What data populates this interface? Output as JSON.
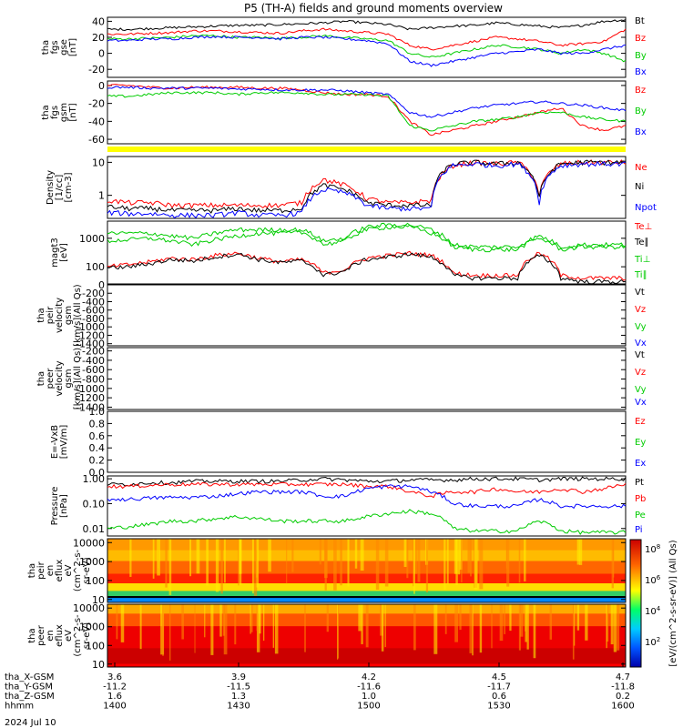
{
  "title": "P5 (TH-A) fields and ground moments overview",
  "panels": [
    {
      "id": "fgs-gse",
      "ylabel": [
        "tha",
        "fgs",
        "gse",
        "[nT]"
      ],
      "ticks": [
        "40",
        "20",
        "0",
        "-20"
      ],
      "legend": [
        {
          "t": "Bt",
          "c": "#000000"
        },
        {
          "t": "Bz",
          "c": "#ff0000"
        },
        {
          "t": "By",
          "c": "#00cc00"
        },
        {
          "t": "Bx",
          "c": "#0000ff"
        }
      ]
    },
    {
      "id": "fgs-gsm",
      "ylabel": [
        "tha",
        "fgs",
        "gsm",
        "[nT]"
      ],
      "ticks": [
        "0",
        "-20",
        "-40",
        "-60"
      ],
      "legend": [
        {
          "t": "Bz",
          "c": "#ff0000"
        },
        {
          "t": "By",
          "c": "#00cc00"
        },
        {
          "t": "Bx",
          "c": "#0000ff"
        }
      ]
    },
    {
      "id": "density",
      "ylabel": [
        "Density",
        "[1/cc]",
        "[cm-3]"
      ],
      "ticks": [
        "10",
        "1"
      ],
      "legend": [
        {
          "t": "Ne",
          "c": "#ff0000"
        },
        {
          "t": "Ni",
          "c": "#000000"
        },
        {
          "t": "Npot",
          "c": "#0000ff"
        }
      ]
    },
    {
      "id": "temperature",
      "ylabel": [
        "magt3",
        "[eV]"
      ],
      "ticks": [
        "1000",
        "100"
      ],
      "legend": [
        {
          "t": "Te⊥",
          "c": "#ff0000"
        },
        {
          "t": "Te∥",
          "c": "#000000"
        },
        {
          "t": "Ti⊥",
          "c": "#00cc00"
        },
        {
          "t": "Ti∥",
          "c": "#00cc00"
        }
      ]
    },
    {
      "id": "peir-vel",
      "ylabel": [
        "tha",
        "peir",
        "velocity",
        "gsm",
        "[km/s](All Qs)"
      ],
      "ticks": [
        "0",
        "-200",
        "-400",
        "-600",
        "-800",
        "-1000",
        "-1200",
        "-1400"
      ],
      "legend": [
        {
          "t": "Vt",
          "c": "#000000"
        },
        {
          "t": "Vz",
          "c": "#ff0000"
        },
        {
          "t": "Vy",
          "c": "#00cc00"
        },
        {
          "t": "Vx",
          "c": "#0000ff"
        }
      ]
    },
    {
      "id": "peer-vel",
      "ylabel": [
        "tha",
        "peer",
        "velocity",
        "gsm",
        "[km/s](All Qs)"
      ],
      "ticks": [
        "-200",
        "-400",
        "-600",
        "-800",
        "-1000",
        "-1200",
        "-1400"
      ],
      "legend": [
        {
          "t": "Vt",
          "c": "#000000"
        },
        {
          "t": "Vz",
          "c": "#ff0000"
        },
        {
          "t": "Vy",
          "c": "#00cc00"
        },
        {
          "t": "Vx",
          "c": "#0000ff"
        }
      ]
    },
    {
      "id": "efield",
      "ylabel": [
        "E=-VxB",
        "[mV/m]"
      ],
      "ticks": [
        "1.0",
        "0.8",
        "0.6",
        "0.4",
        "0.2",
        "0.0"
      ],
      "legend": [
        {
          "t": "Ez",
          "c": "#ff0000"
        },
        {
          "t": "Ey",
          "c": "#00cc00"
        },
        {
          "t": "Ex",
          "c": "#0000ff"
        }
      ]
    },
    {
      "id": "pressure",
      "ylabel": [
        "Pressure",
        "[nPa]"
      ],
      "ticks": [
        "1.00",
        "0.10",
        "0.01"
      ],
      "legend": [
        {
          "t": "Pt",
          "c": "#000000"
        },
        {
          "t": "Pb",
          "c": "#ff0000"
        },
        {
          "t": "Pe",
          "c": "#00cc00"
        },
        {
          "t": "Pi",
          "c": "#0000ff"
        }
      ]
    },
    {
      "id": "peir-en",
      "ylabel": [
        "tha",
        "peir",
        "en",
        "eflux",
        "eV",
        "(cm^2-s-",
        "sr-eV)"
      ],
      "ticks": [
        "10000",
        "1000",
        "100",
        "10"
      ],
      "legend": []
    },
    {
      "id": "peer-en",
      "ylabel": [
        "tha",
        "peer",
        "en",
        "eflux",
        "eV",
        "(cm^2-s-",
        "sr-eV)"
      ],
      "ticks": [
        "10000",
        "1000",
        "100",
        "10"
      ],
      "legend": []
    }
  ],
  "colorbar": {
    "ticks": [
      "10^8",
      "10^6",
      "10^4",
      "10^2"
    ],
    "label": "[eV/(cm^2-s-sr-eV)] (All Qs)"
  },
  "axis_rows": [
    {
      "label": "tha_X-GSM",
      "values": [
        "3.6",
        "3.9",
        "4.2",
        "4.5",
        "4.7"
      ]
    },
    {
      "label": "tha_Y-GSM",
      "values": [
        "-11.2",
        "-11.5",
        "-11.6",
        "-11.7",
        "-11.8"
      ]
    },
    {
      "label": "tha_Z-GSM",
      "values": [
        "1.6",
        "1.3",
        "1.0",
        "0.6",
        "0.2"
      ]
    },
    {
      "label": "hhmm",
      "values": [
        "1400",
        "1430",
        "1500",
        "1530",
        "1600"
      ]
    }
  ],
  "date_label": "2024 Jul 10",
  "colors": {
    "black": "#000000",
    "red": "#ff0000",
    "green": "#00cc00",
    "blue": "#0000ff",
    "yellow": "#ffff00"
  },
  "chart_data": {
    "type": "line",
    "title": "P5 (TH-A) fields and ground moments overview",
    "x": {
      "label": "hhmm",
      "range": [
        "1400",
        "1600"
      ],
      "ticks": [
        "1400",
        "1430",
        "1500",
        "1530",
        "1600"
      ]
    },
    "series": [
      {
        "panel": "fgs-gse",
        "name": "Bt",
        "values": [
          30,
          30,
          31,
          32,
          33,
          34,
          35,
          35,
          36,
          37,
          38,
          40,
          38,
          36,
          30,
          32,
          34,
          35,
          38,
          36,
          34,
          32,
          35,
          40,
          42
        ]
      },
      {
        "panel": "fgs-gse",
        "name": "Bz",
        "values": [
          24,
          24,
          25,
          26,
          28,
          28,
          27,
          26,
          25,
          28,
          30,
          28,
          26,
          24,
          10,
          5,
          10,
          15,
          20,
          18,
          15,
          10,
          12,
          15,
          30
        ]
      },
      {
        "panel": "fgs-gse",
        "name": "By",
        "values": [
          18,
          18,
          19,
          20,
          22,
          22,
          20,
          20,
          19,
          20,
          22,
          20,
          18,
          16,
          0,
          -5,
          0,
          5,
          10,
          8,
          5,
          0,
          5,
          0,
          -10
        ]
      },
      {
        "panel": "fgs-gse",
        "name": "Bx",
        "values": [
          16,
          16,
          18,
          18,
          20,
          21,
          20,
          20,
          18,
          20,
          20,
          18,
          16,
          12,
          -10,
          -15,
          -10,
          -5,
          0,
          2,
          5,
          0,
          0,
          5,
          10
        ]
      },
      {
        "panel": "fgs-gsm",
        "name": "Bz",
        "values": [
          0,
          0,
          -2,
          -3,
          -2,
          -2,
          -2,
          -3,
          -3,
          -5,
          -8,
          -10,
          -10,
          -12,
          -40,
          -55,
          -50,
          -45,
          -40,
          -35,
          -30,
          -25,
          -45,
          -50,
          -45
        ]
      },
      {
        "panel": "fgs-gsm",
        "name": "By",
        "values": [
          -12,
          -12,
          -10,
          -8,
          -8,
          -8,
          -10,
          -8,
          -8,
          -8,
          -10,
          -10,
          -10,
          -12,
          -45,
          -50,
          -45,
          -40,
          -38,
          -35,
          -30,
          -30,
          -35,
          -38,
          -40
        ]
      },
      {
        "panel": "fgs-gsm",
        "name": "Bx",
        "values": [
          -2,
          -2,
          -3,
          -3,
          -3,
          -3,
          -4,
          -4,
          -5,
          -5,
          -5,
          -6,
          -8,
          -10,
          -30,
          -35,
          -30,
          -25,
          -22,
          -20,
          -18,
          -20,
          -22,
          -25,
          -28
        ]
      },
      {
        "panel": "density",
        "name": "Ne",
        "values": [
          0.7,
          0.6,
          0.6,
          0.5,
          0.5,
          0.5,
          0.5,
          0.5,
          0.5,
          0.6,
          3,
          2,
          0.8,
          0.6,
          0.6,
          0.7,
          8,
          10,
          9,
          10,
          1,
          9,
          10,
          10,
          10
        ]
      },
      {
        "panel": "density",
        "name": "Ni",
        "values": [
          0.45,
          0.4,
          0.4,
          0.35,
          0.35,
          0.35,
          0.4,
          0.35,
          0.35,
          0.4,
          2,
          1.5,
          0.6,
          0.5,
          0.5,
          0.5,
          9,
          10,
          9,
          10,
          0.8,
          9,
          10,
          10,
          10
        ]
      },
      {
        "panel": "density",
        "name": "Npot",
        "values": [
          0.3,
          0.28,
          0.28,
          0.25,
          0.25,
          0.25,
          0.3,
          0.25,
          0.25,
          0.3,
          1.5,
          1.2,
          0.5,
          0.4,
          0.4,
          0.4,
          8,
          9,
          8,
          9,
          0.6,
          8,
          9,
          9,
          9
        ]
      },
      {
        "panel": "temperature",
        "name": "Te⊥",
        "values": [
          100,
          120,
          150,
          200,
          180,
          250,
          300,
          200,
          150,
          180,
          60,
          80,
          200,
          250,
          300,
          250,
          60,
          50,
          50,
          50,
          300,
          50,
          40,
          40,
          40
        ]
      },
      {
        "panel": "temperature",
        "name": "Te∥",
        "values": [
          90,
          100,
          130,
          180,
          160,
          220,
          280,
          180,
          140,
          160,
          50,
          70,
          180,
          220,
          280,
          220,
          50,
          40,
          40,
          40,
          250,
          40,
          30,
          30,
          30
        ]
      },
      {
        "panel": "temperature",
        "name": "Ti⊥",
        "values": [
          800,
          900,
          1000,
          800,
          600,
          900,
          1200,
          1500,
          1500,
          1600,
          600,
          800,
          2000,
          2500,
          2500,
          1500,
          500,
          400,
          400,
          400,
          1000,
          400,
          500,
          500,
          500
        ]
      },
      {
        "panel": "temperature",
        "name": "Ti∥",
        "values": [
          1500,
          1500,
          1500,
          1200,
          1000,
          1500,
          2000,
          2000,
          2000,
          2000,
          800,
          1000,
          2500,
          3000,
          3000,
          2000,
          600,
          500,
          500,
          500,
          1200,
          500,
          600,
          600,
          600
        ]
      },
      {
        "panel": "pressure",
        "name": "Pt",
        "values": [
          0.6,
          0.6,
          0.7,
          0.7,
          0.8,
          0.8,
          0.8,
          0.8,
          0.8,
          0.9,
          1.0,
          0.9,
          0.8,
          0.8,
          0.9,
          0.9,
          0.9,
          1.0,
          1.0,
          1.0,
          0.9,
          1.0,
          1.0,
          1.0,
          1.0
        ]
      },
      {
        "panel": "pressure",
        "name": "Pb",
        "values": [
          0.5,
          0.5,
          0.55,
          0.6,
          0.6,
          0.6,
          0.6,
          0.6,
          0.6,
          0.6,
          0.6,
          0.6,
          0.5,
          0.5,
          0.3,
          0.2,
          0.3,
          0.3,
          0.4,
          0.3,
          0.3,
          0.4,
          0.3,
          0.4,
          0.6
        ]
      },
      {
        "panel": "pressure",
        "name": "Pe",
        "values": [
          0.01,
          0.012,
          0.015,
          0.02,
          0.02,
          0.025,
          0.03,
          0.025,
          0.02,
          0.02,
          0.02,
          0.02,
          0.03,
          0.04,
          0.05,
          0.04,
          0.01,
          0.008,
          0.008,
          0.008,
          0.02,
          0.008,
          0.007,
          0.007,
          0.007
        ]
      },
      {
        "panel": "pressure",
        "name": "Pi",
        "values": [
          0.15,
          0.15,
          0.17,
          0.18,
          0.18,
          0.2,
          0.25,
          0.3,
          0.3,
          0.3,
          0.2,
          0.2,
          0.4,
          0.5,
          0.5,
          0.3,
          0.1,
          0.08,
          0.08,
          0.08,
          0.15,
          0.08,
          0.08,
          0.08,
          0.08
        ]
      }
    ]
  }
}
